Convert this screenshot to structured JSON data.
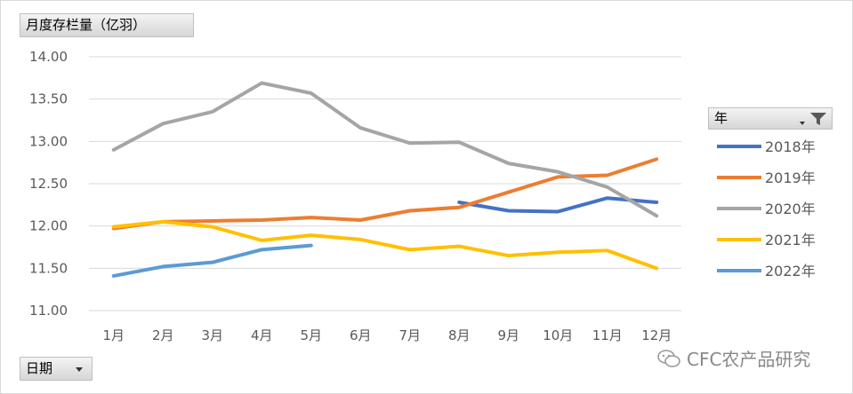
{
  "unit_button": "月度存栏量（亿羽）",
  "date_button": "日期",
  "legend_header": "年",
  "watermark": "CFC农产品研究",
  "chart_data": {
    "type": "line",
    "categories": [
      "1月",
      "2月",
      "3月",
      "4月",
      "5月",
      "6月",
      "7月",
      "8月",
      "9月",
      "10月",
      "11月",
      "12月"
    ],
    "ylim": [
      11.0,
      14.0
    ],
    "yticks": [
      "11.00",
      "11.50",
      "12.00",
      "12.50",
      "13.00",
      "13.50",
      "14.00"
    ],
    "yticks_values": [
      11.0,
      11.5,
      12.0,
      12.5,
      13.0,
      13.5,
      14.0
    ],
    "grid": true,
    "legend_position": "right",
    "series": [
      {
        "name": "2018年",
        "color": "#4472c4",
        "values": [
          null,
          null,
          null,
          null,
          null,
          null,
          null,
          12.28,
          12.18,
          12.17,
          12.33,
          12.28
        ]
      },
      {
        "name": "2019年",
        "color": "#ed7d31",
        "values": [
          11.97,
          12.05,
          12.06,
          12.07,
          12.1,
          12.07,
          12.18,
          12.22,
          12.4,
          12.58,
          12.6,
          12.79
        ]
      },
      {
        "name": "2020年",
        "color": "#a5a5a5",
        "values": [
          12.9,
          13.21,
          13.35,
          13.69,
          13.57,
          13.16,
          12.98,
          12.99,
          12.74,
          12.64,
          12.46,
          12.12
        ]
      },
      {
        "name": "2021年",
        "color": "#ffc000",
        "values": [
          11.99,
          12.05,
          11.99,
          11.83,
          11.89,
          11.84,
          11.72,
          11.76,
          11.65,
          11.69,
          11.71,
          11.5
        ]
      },
      {
        "name": "2022年",
        "color": "#5b9bd5",
        "values": [
          11.41,
          11.52,
          11.57,
          11.72,
          11.77,
          null,
          null,
          null,
          null,
          null,
          null,
          null
        ]
      }
    ]
  }
}
